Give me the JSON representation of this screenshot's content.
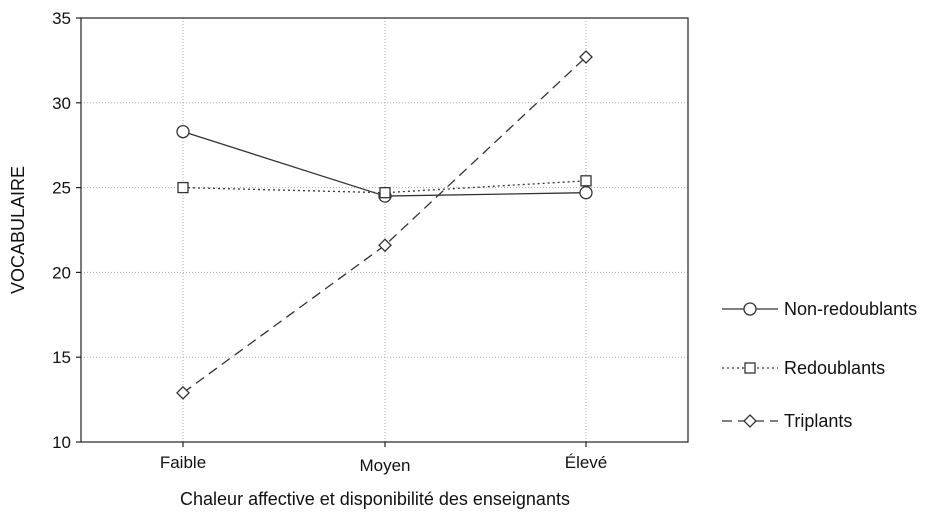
{
  "chart_data": {
    "type": "line",
    "categories": [
      "Faible",
      "Moyen",
      "Élevé"
    ],
    "ylim": [
      10,
      35
    ],
    "yticks": [
      10,
      15,
      20,
      25,
      30,
      35
    ],
    "xlabel": "Chaleur affective et disponibilité des enseignants",
    "ylabel": "VOCABULAIRE",
    "grid": true,
    "legend_position": "right",
    "series": [
      {
        "name": "Non-redoublants",
        "marker": "circle",
        "line": "solid",
        "values": [
          28.3,
          24.5,
          24.7
        ]
      },
      {
        "name": "Redoublants",
        "marker": "square",
        "line": "dotted",
        "values": [
          25.0,
          24.7,
          25.4
        ]
      },
      {
        "name": "Triplants",
        "marker": "diamond",
        "line": "dashed",
        "values": [
          12.9,
          21.6,
          32.7
        ]
      }
    ],
    "colors": {
      "line": "#333333",
      "grid": "#aaaaaa",
      "marker_fill": "#ffffff"
    }
  }
}
